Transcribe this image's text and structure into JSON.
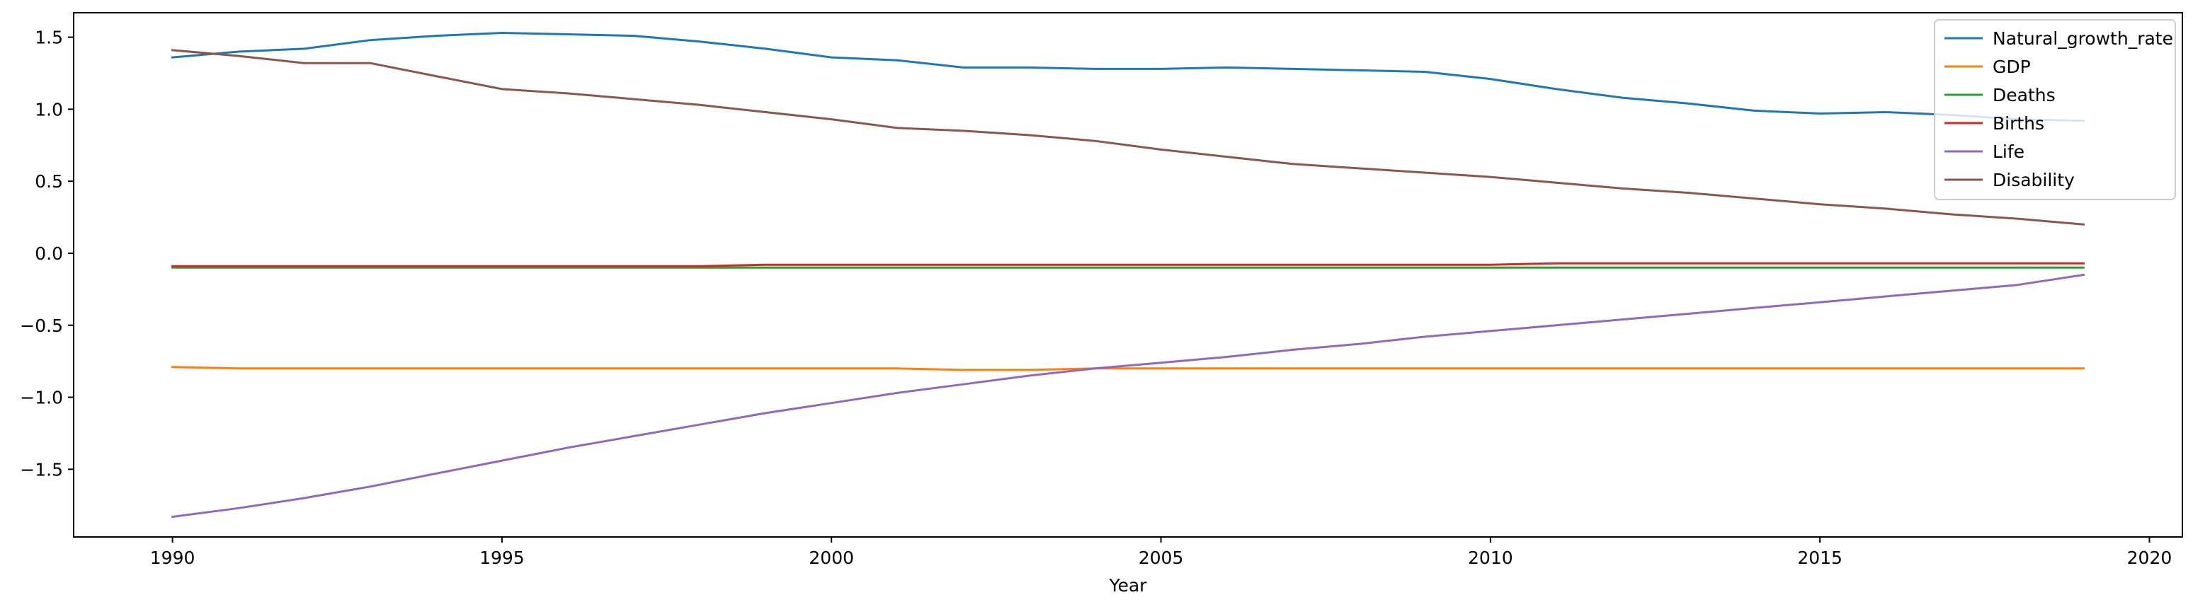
{
  "chart_data": {
    "type": "line",
    "title": "",
    "xlabel": "Year",
    "ylabel": "",
    "xlim": [
      1988.5,
      2020.5
    ],
    "ylim": [
      -1.97,
      1.67
    ],
    "grid": false,
    "legend_position": "top-right",
    "x_ticks": [
      1990,
      1995,
      2000,
      2005,
      2010,
      2015,
      2020
    ],
    "x_tick_labels": [
      "1990",
      "1995",
      "2000",
      "2005",
      "2010",
      "2015",
      "2020"
    ],
    "y_ticks": [
      1.5,
      1.0,
      0.5,
      0.0,
      -0.5,
      -1.0,
      -1.5
    ],
    "y_tick_labels": [
      "1.5",
      "1.0",
      "0.5",
      "0.0",
      "−0.5",
      "−1.0",
      "−1.5"
    ],
    "x": [
      1990,
      1991,
      1992,
      1993,
      1994,
      1995,
      1996,
      1997,
      1998,
      1999,
      2000,
      2001,
      2002,
      2003,
      2004,
      2005,
      2006,
      2007,
      2008,
      2009,
      2010,
      2011,
      2012,
      2013,
      2014,
      2015,
      2016,
      2017,
      2018,
      2019
    ],
    "series": [
      {
        "name": "Natural_growth_rate",
        "color": "#1f77b4",
        "values": [
          1.36,
          1.4,
          1.42,
          1.48,
          1.51,
          1.53,
          1.52,
          1.51,
          1.47,
          1.42,
          1.36,
          1.34,
          1.29,
          1.29,
          1.28,
          1.28,
          1.29,
          1.28,
          1.27,
          1.26,
          1.21,
          1.14,
          1.08,
          1.04,
          0.99,
          0.97,
          0.98,
          0.96,
          0.93,
          0.92
        ]
      },
      {
        "name": "GDP",
        "color": "#ff7f0e",
        "values": [
          -0.79,
          -0.8,
          -0.8,
          -0.8,
          -0.8,
          -0.8,
          -0.8,
          -0.8,
          -0.8,
          -0.8,
          -0.8,
          -0.8,
          -0.81,
          -0.81,
          -0.8,
          -0.8,
          -0.8,
          -0.8,
          -0.8,
          -0.8,
          -0.8,
          -0.8,
          -0.8,
          -0.8,
          -0.8,
          -0.8,
          -0.8,
          -0.8,
          -0.8,
          -0.8
        ]
      },
      {
        "name": "Deaths",
        "color": "#2ca02c",
        "values": [
          -0.1,
          -0.1,
          -0.1,
          -0.1,
          -0.1,
          -0.1,
          -0.1,
          -0.1,
          -0.1,
          -0.1,
          -0.1,
          -0.1,
          -0.1,
          -0.1,
          -0.1,
          -0.1,
          -0.1,
          -0.1,
          -0.1,
          -0.1,
          -0.1,
          -0.1,
          -0.1,
          -0.1,
          -0.1,
          -0.1,
          -0.1,
          -0.1,
          -0.1,
          -0.1
        ]
      },
      {
        "name": "Births",
        "color": "#d62728",
        "values": [
          -0.09,
          -0.09,
          -0.09,
          -0.09,
          -0.09,
          -0.09,
          -0.09,
          -0.09,
          -0.09,
          -0.08,
          -0.08,
          -0.08,
          -0.08,
          -0.08,
          -0.08,
          -0.08,
          -0.08,
          -0.08,
          -0.08,
          -0.08,
          -0.08,
          -0.07,
          -0.07,
          -0.07,
          -0.07,
          -0.07,
          -0.07,
          -0.07,
          -0.07,
          -0.07
        ]
      },
      {
        "name": "Life",
        "color": "#9467bd",
        "values": [
          -1.83,
          -1.77,
          -1.7,
          -1.62,
          -1.53,
          -1.44,
          -1.35,
          -1.27,
          -1.19,
          -1.11,
          -1.04,
          -0.97,
          -0.91,
          -0.85,
          -0.8,
          -0.76,
          -0.72,
          -0.67,
          -0.63,
          -0.58,
          -0.54,
          -0.5,
          -0.46,
          -0.42,
          -0.38,
          -0.34,
          -0.3,
          -0.26,
          -0.22,
          -0.15
        ]
      },
      {
        "name": "Disability",
        "color": "#8c564b",
        "values": [
          1.41,
          1.37,
          1.32,
          1.32,
          1.23,
          1.14,
          1.11,
          1.07,
          1.03,
          0.98,
          0.93,
          0.87,
          0.85,
          0.82,
          0.78,
          0.72,
          0.67,
          0.62,
          0.59,
          0.56,
          0.53,
          0.49,
          0.45,
          0.42,
          0.38,
          0.34,
          0.31,
          0.27,
          0.24,
          0.2
        ]
      }
    ]
  }
}
